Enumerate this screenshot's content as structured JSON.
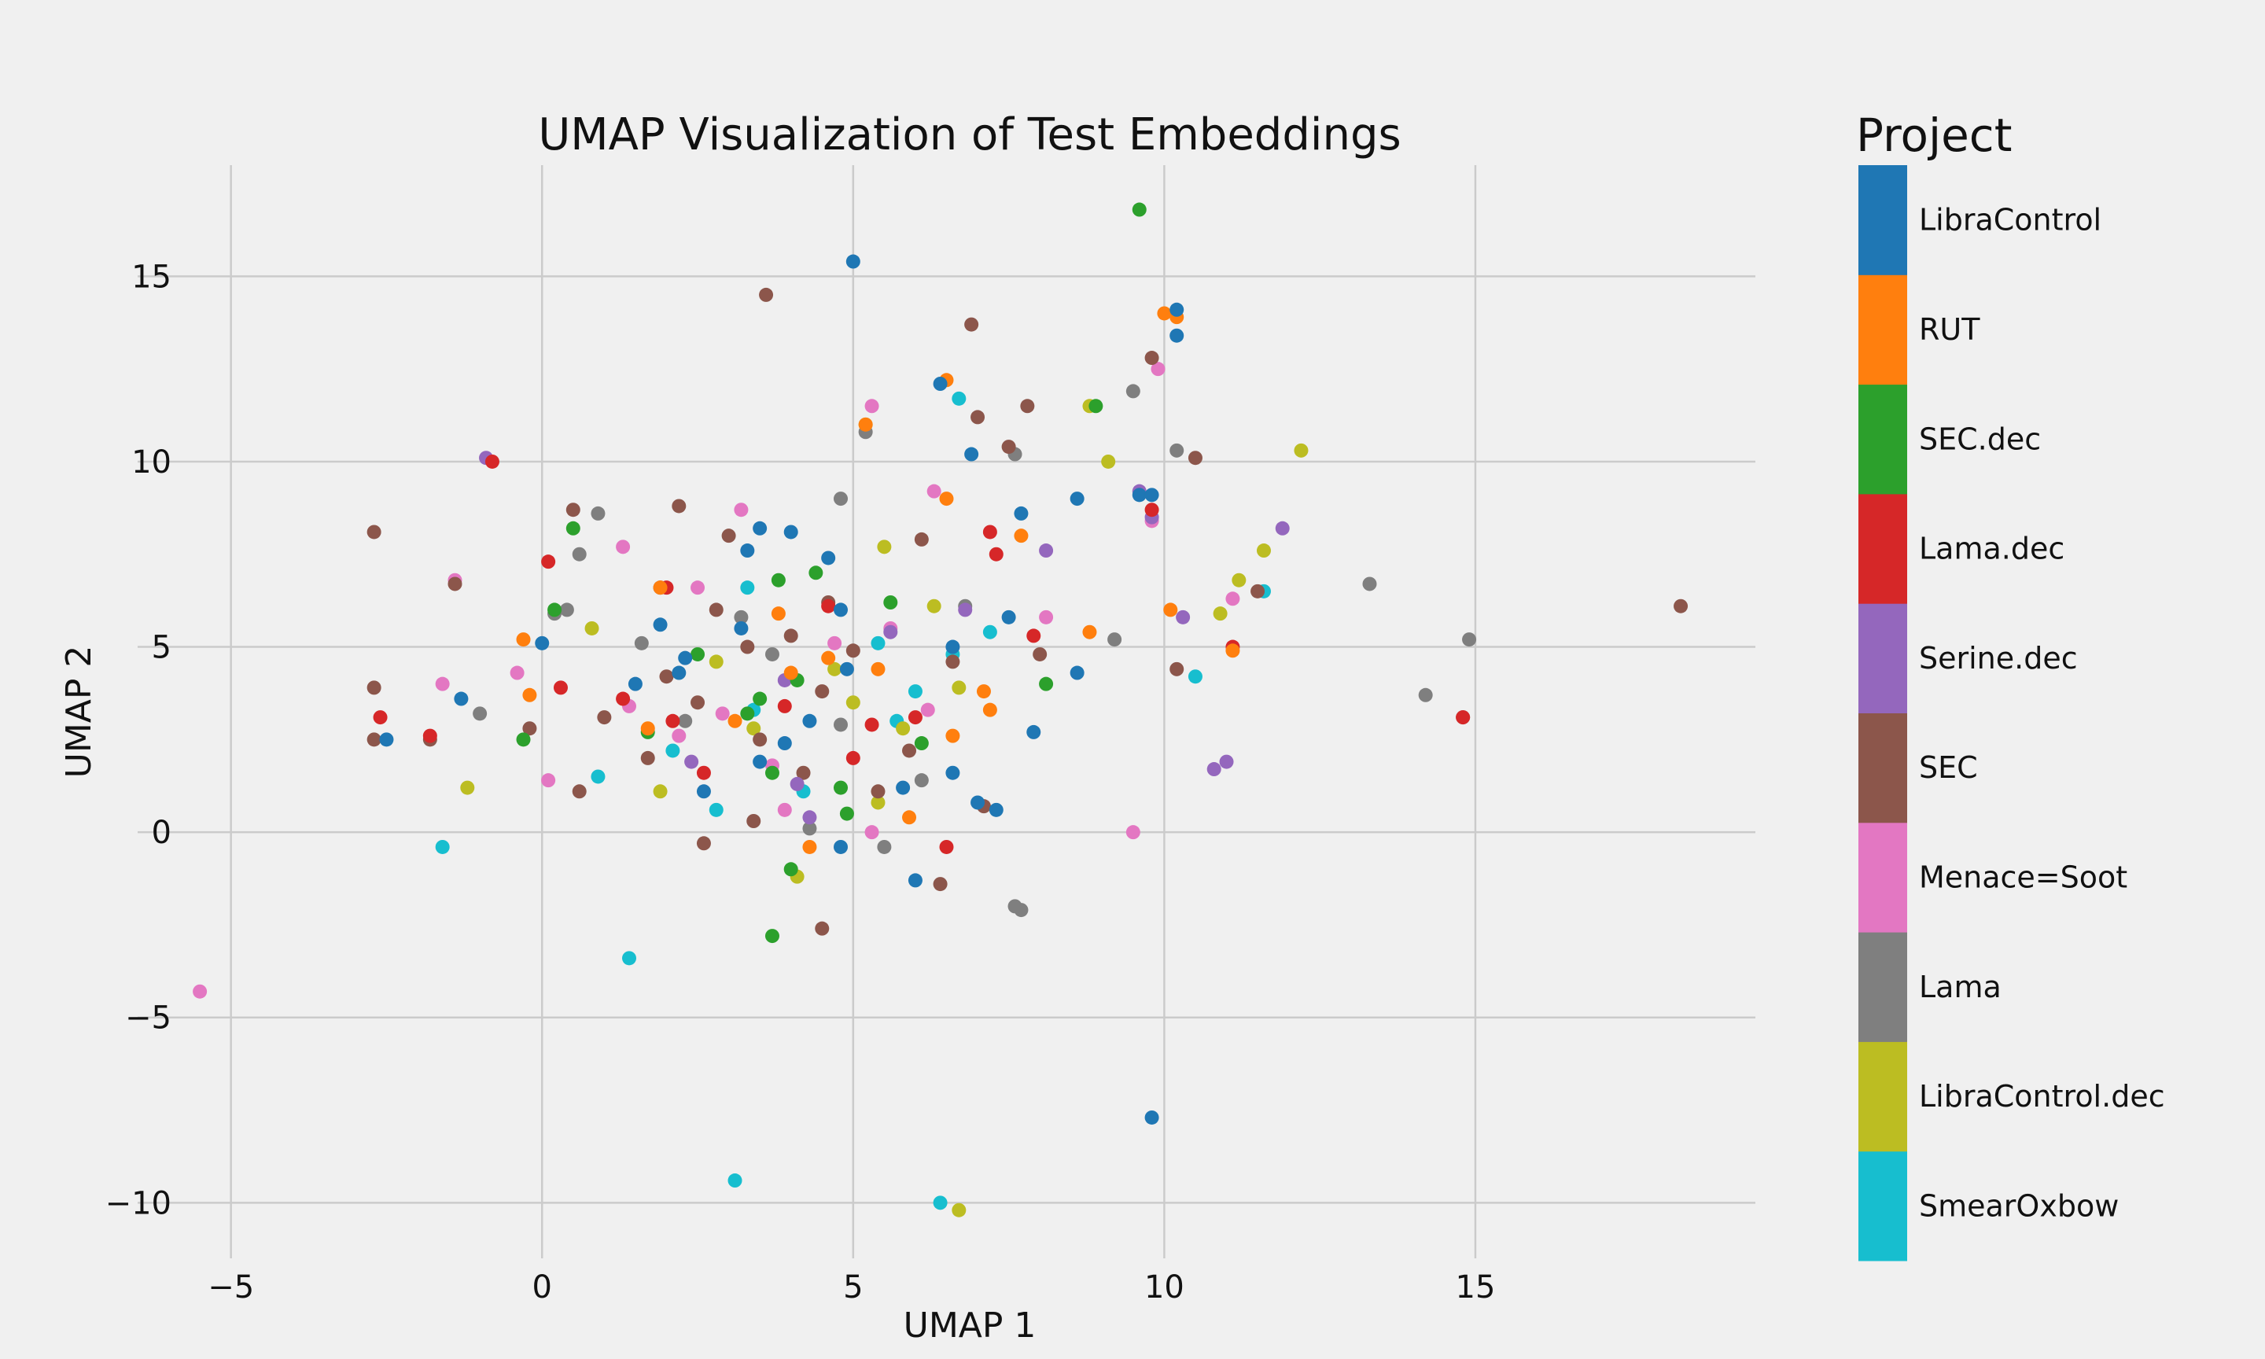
{
  "chart_data": {
    "type": "scatter",
    "title": "UMAP Visualization of Test Embeddings",
    "xlabel": "UMAP 1",
    "ylabel": "UMAP 2",
    "xlim": [
      -6.5,
      19.5
    ],
    "ylim": [
      -11.5,
      18
    ],
    "xticks": [
      -5,
      0,
      5,
      10,
      15
    ],
    "yticks": [
      -10,
      -5,
      0,
      5,
      10,
      15
    ],
    "xtick_labels": [
      "−5",
      "0",
      "5",
      "10",
      "15"
    ],
    "ytick_labels": [
      "−10",
      "−5",
      "0",
      "5",
      "10",
      "15"
    ],
    "grid": true,
    "legend_title": "Project",
    "legend_placement": "right",
    "series": [
      {
        "name": "SmearOxbow",
        "color": "#17becf",
        "points": [
          [
            -1.6,
            -0.4
          ],
          [
            1.4,
            -3.4
          ],
          [
            3.1,
            -9.4
          ],
          [
            6.7,
            11.7
          ],
          [
            6.4,
            -10.0
          ],
          [
            11.6,
            6.5
          ],
          [
            10.5,
            4.2
          ],
          [
            2.8,
            0.6
          ],
          [
            3.3,
            6.6
          ],
          [
            6.0,
            3.8
          ],
          [
            5.4,
            5.1
          ],
          [
            7.2,
            5.4
          ],
          [
            2.1,
            2.2
          ],
          [
            0.9,
            1.5
          ],
          [
            4.2,
            1.1
          ],
          [
            3.4,
            3.3
          ],
          [
            6.6,
            4.8
          ],
          [
            5.7,
            3.0
          ]
        ]
      },
      {
        "name": "LibraControl.dec",
        "color": "#bcbd22",
        "points": [
          [
            6.7,
            -10.2
          ],
          [
            8.8,
            11.5
          ],
          [
            9.1,
            10.0
          ],
          [
            12.2,
            10.3
          ],
          [
            11.2,
            6.8
          ],
          [
            11.6,
            7.6
          ],
          [
            10.9,
            5.9
          ],
          [
            5.2,
            11.0
          ],
          [
            5.5,
            7.7
          ],
          [
            5.0,
            3.5
          ],
          [
            5.4,
            0.8
          ],
          [
            4.1,
            -1.2
          ],
          [
            0.8,
            5.5
          ],
          [
            -1.2,
            1.2
          ],
          [
            2.8,
            4.6
          ],
          [
            4.7,
            4.4
          ],
          [
            5.8,
            2.8
          ],
          [
            6.7,
            3.9
          ],
          [
            1.9,
            1.1
          ],
          [
            3.4,
            2.8
          ],
          [
            6.3,
            6.1
          ]
        ]
      },
      {
        "name": "Lama",
        "color": "#7f7f7f",
        "points": [
          [
            13.3,
            6.7
          ],
          [
            14.2,
            3.7
          ],
          [
            14.9,
            5.2
          ],
          [
            9.5,
            11.9
          ],
          [
            10.2,
            10.3
          ],
          [
            7.7,
            -2.1
          ],
          [
            7.6,
            -2.0
          ],
          [
            5.2,
            10.8
          ],
          [
            4.8,
            9.0
          ],
          [
            0.9,
            8.6
          ],
          [
            0.6,
            7.5
          ],
          [
            0.4,
            6.0
          ],
          [
            -1.0,
            3.2
          ],
          [
            0.2,
            5.9
          ],
          [
            1.6,
            5.1
          ],
          [
            2.3,
            3.0
          ],
          [
            3.7,
            4.8
          ],
          [
            4.3,
            0.1
          ],
          [
            5.5,
            -0.4
          ],
          [
            6.8,
            6.1
          ],
          [
            7.6,
            10.2
          ],
          [
            9.2,
            5.2
          ],
          [
            4.8,
            2.9
          ],
          [
            3.2,
            5.8
          ],
          [
            6.1,
            1.4
          ]
        ]
      },
      {
        "name": "Menace=Soot",
        "color": "#e377c2",
        "points": [
          [
            -5.5,
            -4.3
          ],
          [
            9.5,
            0.0
          ],
          [
            9.9,
            12.5
          ],
          [
            5.3,
            11.5
          ],
          [
            6.3,
            9.2
          ],
          [
            3.2,
            8.7
          ],
          [
            1.3,
            7.7
          ],
          [
            -1.4,
            6.8
          ],
          [
            -1.6,
            4.0
          ],
          [
            0.1,
            1.4
          ],
          [
            2.5,
            6.6
          ],
          [
            5.6,
            5.5
          ],
          [
            8.1,
            5.8
          ],
          [
            11.1,
            6.3
          ],
          [
            9.8,
            8.4
          ],
          [
            4.7,
            5.1
          ],
          [
            2.9,
            3.2
          ],
          [
            3.9,
            0.6
          ],
          [
            5.3,
            0.0
          ],
          [
            6.2,
            3.3
          ],
          [
            2.2,
            2.6
          ],
          [
            1.4,
            3.4
          ],
          [
            3.7,
            1.8
          ],
          [
            -0.4,
            4.3
          ]
        ]
      },
      {
        "name": "SEC",
        "color": "#8c564b",
        "points": [
          [
            3.6,
            14.5
          ],
          [
            6.9,
            13.7
          ],
          [
            9.8,
            12.8
          ],
          [
            18.3,
            6.1
          ],
          [
            14.8,
            3.1
          ],
          [
            -2.7,
            8.1
          ],
          [
            -2.7,
            3.9
          ],
          [
            -2.7,
            2.5
          ],
          [
            -1.4,
            6.7
          ],
          [
            0.5,
            8.7
          ],
          [
            2.2,
            8.8
          ],
          [
            3.0,
            8.0
          ],
          [
            4.6,
            6.2
          ],
          [
            6.1,
            7.9
          ],
          [
            7.5,
            10.4
          ],
          [
            10.5,
            10.1
          ],
          [
            10.2,
            4.4
          ],
          [
            11.5,
            6.5
          ],
          [
            7.8,
            11.5
          ],
          [
            7.0,
            11.2
          ],
          [
            1.7,
            2.0
          ],
          [
            2.5,
            3.5
          ],
          [
            3.4,
            0.3
          ],
          [
            4.5,
            -2.6
          ],
          [
            6.4,
            -1.4
          ],
          [
            5.4,
            1.1
          ],
          [
            7.1,
            0.7
          ],
          [
            -0.2,
            2.8
          ],
          [
            0.6,
            1.1
          ],
          [
            1.9,
            6.6
          ],
          [
            3.3,
            5.0
          ],
          [
            4.0,
            5.3
          ],
          [
            4.5,
            3.8
          ],
          [
            5.0,
            4.9
          ],
          [
            2.6,
            -0.3
          ],
          [
            5.9,
            2.2
          ],
          [
            6.6,
            4.6
          ],
          [
            8.0,
            4.8
          ],
          [
            1.0,
            3.1
          ],
          [
            2.0,
            4.2
          ],
          [
            3.5,
            2.5
          ],
          [
            4.2,
            1.6
          ],
          [
            2.8,
            6.0
          ],
          [
            -1.8,
            2.5
          ]
        ]
      },
      {
        "name": "Serine.dec",
        "color": "#9467bd",
        "points": [
          [
            -0.9,
            10.1
          ],
          [
            9.6,
            9.2
          ],
          [
            11.9,
            8.2
          ],
          [
            10.8,
            1.7
          ],
          [
            11.0,
            1.9
          ],
          [
            10.3,
            5.8
          ],
          [
            3.9,
            4.1
          ],
          [
            4.3,
            0.4
          ],
          [
            4.1,
            1.3
          ],
          [
            2.4,
            1.9
          ],
          [
            5.6,
            5.4
          ],
          [
            6.8,
            6.0
          ],
          [
            9.8,
            8.5
          ],
          [
            8.1,
            7.6
          ]
        ]
      },
      {
        "name": "Lama.dec",
        "color": "#d62728",
        "points": [
          [
            -0.8,
            10.0
          ],
          [
            0.1,
            7.3
          ],
          [
            -2.6,
            3.1
          ],
          [
            -1.8,
            2.6
          ],
          [
            0.3,
            3.9
          ],
          [
            1.3,
            3.6
          ],
          [
            2.1,
            3.0
          ],
          [
            2.6,
            1.6
          ],
          [
            5.0,
            2.0
          ],
          [
            6.0,
            3.1
          ],
          [
            7.2,
            8.1
          ],
          [
            9.8,
            8.7
          ],
          [
            11.1,
            5.0
          ],
          [
            7.9,
            5.3
          ],
          [
            7.3,
            7.5
          ],
          [
            5.3,
            2.9
          ],
          [
            3.9,
            3.4
          ],
          [
            4.6,
            6.1
          ],
          [
            2.0,
            6.6
          ],
          [
            6.5,
            -0.4
          ],
          [
            14.8,
            3.1
          ]
        ]
      },
      {
        "name": "SEC.dec",
        "color": "#2ca02c",
        "points": [
          [
            9.6,
            16.8
          ],
          [
            8.9,
            11.5
          ],
          [
            0.5,
            8.2
          ],
          [
            0.2,
            6.0
          ],
          [
            -0.3,
            2.5
          ],
          [
            3.7,
            -2.8
          ],
          [
            4.0,
            -1.0
          ],
          [
            3.7,
            1.6
          ],
          [
            4.8,
            1.2
          ],
          [
            5.6,
            6.2
          ],
          [
            4.4,
            7.0
          ],
          [
            3.8,
            6.8
          ],
          [
            2.5,
            4.8
          ],
          [
            1.7,
            2.7
          ],
          [
            3.3,
            3.2
          ],
          [
            4.1,
            4.1
          ],
          [
            6.1,
            2.4
          ],
          [
            8.1,
            4.0
          ],
          [
            3.5,
            3.6
          ],
          [
            4.9,
            0.5
          ]
        ]
      },
      {
        "name": "RUT",
        "color": "#ff7f0e",
        "points": [
          [
            10.0,
            14.0
          ],
          [
            10.2,
            13.9
          ],
          [
            6.5,
            12.2
          ],
          [
            5.2,
            11.0
          ],
          [
            6.5,
            9.0
          ],
          [
            7.7,
            8.0
          ],
          [
            -0.3,
            5.2
          ],
          [
            -0.2,
            3.7
          ],
          [
            1.9,
            6.6
          ],
          [
            3.1,
            3.0
          ],
          [
            4.6,
            4.7
          ],
          [
            5.4,
            4.4
          ],
          [
            5.9,
            0.4
          ],
          [
            7.2,
            3.3
          ],
          [
            8.8,
            5.4
          ],
          [
            11.1,
            4.9
          ],
          [
            4.3,
            -0.4
          ],
          [
            6.6,
            2.6
          ],
          [
            4.0,
            4.3
          ],
          [
            1.7,
            2.8
          ],
          [
            3.8,
            5.9
          ],
          [
            10.1,
            6.0
          ],
          [
            7.1,
            3.8
          ]
        ]
      },
      {
        "name": "LibraControl",
        "color": "#1f77b4",
        "points": [
          [
            5.0,
            15.4
          ],
          [
            10.2,
            14.1
          ],
          [
            10.2,
            13.4
          ],
          [
            6.4,
            12.1
          ],
          [
            6.9,
            10.2
          ],
          [
            8.6,
            9.0
          ],
          [
            9.6,
            9.1
          ],
          [
            9.8,
            9.1
          ],
          [
            7.7,
            8.6
          ],
          [
            4.0,
            8.1
          ],
          [
            3.5,
            8.2
          ],
          [
            4.6,
            7.4
          ],
          [
            3.3,
            7.6
          ],
          [
            -2.5,
            2.5
          ],
          [
            -1.3,
            3.6
          ],
          [
            0.0,
            5.1
          ],
          [
            1.9,
            5.6
          ],
          [
            2.3,
            4.7
          ],
          [
            3.2,
            5.5
          ],
          [
            4.8,
            6.0
          ],
          [
            6.6,
            5.0
          ],
          [
            7.5,
            5.8
          ],
          [
            8.6,
            4.3
          ],
          [
            9.8,
            -7.7
          ],
          [
            6.0,
            -1.3
          ],
          [
            4.8,
            -0.4
          ],
          [
            7.3,
            0.6
          ],
          [
            6.6,
            1.6
          ],
          [
            5.8,
            1.2
          ],
          [
            2.6,
            1.1
          ],
          [
            3.5,
            1.9
          ],
          [
            3.9,
            2.4
          ],
          [
            4.3,
            3.0
          ],
          [
            2.2,
            4.3
          ],
          [
            1.5,
            4.0
          ],
          [
            4.9,
            4.4
          ],
          [
            7.9,
            2.7
          ],
          [
            7.0,
            0.8
          ]
        ]
      }
    ]
  }
}
